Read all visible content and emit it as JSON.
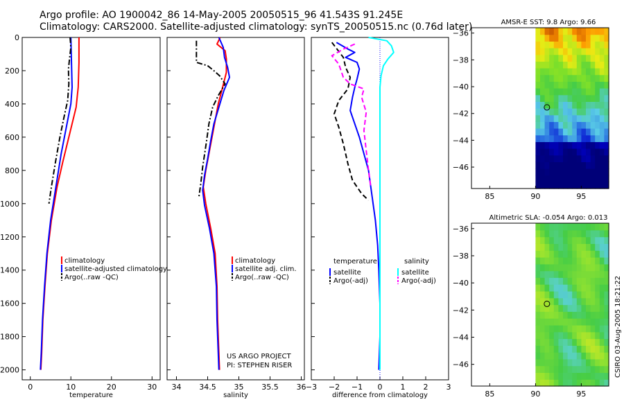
{
  "header": {
    "line1": "Argo profile: AO 1900042_86 14-May-2005 20050515_96 41.543S 91.245E",
    "line2": "Climatology: CARS2000. Satellite-adjusted climatology: synTS_20050515.nc (0.76d later)"
  },
  "colors": {
    "climatology": "#ff0000",
    "satellite": "#0000ff",
    "argo": "#000000",
    "salinity_satellite": "#00ffff",
    "salinity_argo": "#ff00ff"
  },
  "credits": {
    "project": "US ARGO PROJECT",
    "pi": "PI: STEPHEN RISER",
    "stamp": "CSIRO 03-Aug-2005 18:21:22"
  },
  "chart_data": [
    {
      "type": "line",
      "xlabel": "temperature",
      "ylabel": "",
      "xlim": [
        -2,
        32
      ],
      "ylim": [
        2060,
        0
      ],
      "xticks": [
        0,
        10,
        20,
        30
      ],
      "yticks": [
        0,
        200,
        400,
        600,
        800,
        1000,
        1200,
        1400,
        1600,
        1800,
        2000
      ],
      "legend": {
        "position": "middle-right",
        "entries": [
          "climatology",
          "satellite-adjusted climatology",
          "Argo(..raw -QC)"
        ]
      },
      "series": [
        {
          "name": "climatology",
          "color": "#ff0000",
          "style": "solid",
          "points": [
            [
              12,
              0
            ],
            [
              12,
              150
            ],
            [
              11.8,
              300
            ],
            [
              11.3,
              420
            ],
            [
              10,
              550
            ],
            [
              8,
              750
            ],
            [
              6.6,
              900
            ],
            [
              5.2,
              1100
            ],
            [
              4.2,
              1300
            ],
            [
              3.6,
              1500
            ],
            [
              3.1,
              1700
            ],
            [
              2.8,
              1900
            ],
            [
              2.6,
              2000
            ]
          ]
        },
        {
          "name": "satellite-adjusted climatology",
          "color": "#0000ff",
          "style": "solid",
          "points": [
            [
              10,
              0
            ],
            [
              10.1,
              100
            ],
            [
              10.3,
              300
            ],
            [
              10,
              400
            ],
            [
              8.8,
              550
            ],
            [
              7.6,
              700
            ],
            [
              6.3,
              900
            ],
            [
              5,
              1100
            ],
            [
              4.1,
              1300
            ],
            [
              3.5,
              1500
            ],
            [
              3,
              1700
            ],
            [
              2.7,
              1900
            ],
            [
              2.5,
              2000
            ]
          ]
        },
        {
          "name": "Argo(..raw -QC)",
          "color": "#000000",
          "style": "dashdot",
          "points": [
            [
              9.8,
              0
            ],
            [
              10,
              60
            ],
            [
              9.7,
              120
            ],
            [
              9.4,
              190
            ],
            [
              9.5,
              280
            ],
            [
              9.2,
              380
            ],
            [
              8.3,
              480
            ],
            [
              7.3,
              600
            ],
            [
              6.2,
              750
            ],
            [
              5.2,
              900
            ],
            [
              4.6,
              1000
            ]
          ]
        }
      ]
    },
    {
      "type": "line",
      "xlabel": "salinity",
      "ylabel": "",
      "xlim": [
        33.85,
        36.05
      ],
      "ylim": [
        2060,
        0
      ],
      "xticks": [
        34,
        34.5,
        35,
        35.5,
        36
      ],
      "yticks": [
        0,
        200,
        400,
        600,
        800,
        1000,
        1200,
        1400,
        1600,
        1800,
        2000
      ],
      "legend": {
        "position": "middle-right",
        "entries": [
          "climatology",
          "satellite adj. clim.",
          "Argo(..raw -QC)"
        ]
      },
      "series": [
        {
          "name": "climatology",
          "color": "#ff0000",
          "style": "solid",
          "points": [
            [
              34.7,
              0
            ],
            [
              34.65,
              40
            ],
            [
              34.78,
              80
            ],
            [
              34.8,
              130
            ],
            [
              34.8,
              210
            ],
            [
              34.74,
              300
            ],
            [
              34.67,
              400
            ],
            [
              34.62,
              500
            ],
            [
              34.57,
              600
            ],
            [
              34.52,
              700
            ],
            [
              34.47,
              800
            ],
            [
              34.43,
              900
            ],
            [
              34.47,
              1000
            ],
            [
              34.55,
              1150
            ],
            [
              34.62,
              1300
            ],
            [
              34.65,
              1500
            ],
            [
              34.66,
              1700
            ],
            [
              34.68,
              1900
            ],
            [
              34.69,
              2000
            ]
          ]
        },
        {
          "name": "satellite adj. clim.",
          "color": "#0000ff",
          "style": "solid",
          "points": [
            [
              34.68,
              0
            ],
            [
              34.75,
              60
            ],
            [
              34.77,
              120
            ],
            [
              34.82,
              180
            ],
            [
              34.85,
              240
            ],
            [
              34.76,
              320
            ],
            [
              34.68,
              420
            ],
            [
              34.6,
              520
            ],
            [
              34.55,
              620
            ],
            [
              34.5,
              730
            ],
            [
              34.45,
              830
            ],
            [
              34.42,
              920
            ],
            [
              34.45,
              1010
            ],
            [
              34.53,
              1150
            ],
            [
              34.6,
              1300
            ],
            [
              34.64,
              1500
            ],
            [
              34.65,
              1700
            ],
            [
              34.67,
              1900
            ],
            [
              34.68,
              2000
            ]
          ]
        },
        {
          "name": "Argo(..raw -QC)",
          "color": "#000000",
          "style": "dashdot",
          "points": [
            [
              34.32,
              20
            ],
            [
              34.32,
              100
            ],
            [
              34.32,
              150
            ],
            [
              34.5,
              170
            ],
            [
              34.6,
              200
            ],
            [
              34.69,
              230
            ],
            [
              34.78,
              280
            ],
            [
              34.67,
              350
            ],
            [
              34.58,
              420
            ],
            [
              34.52,
              520
            ],
            [
              34.48,
              630
            ],
            [
              34.42,
              780
            ],
            [
              34.39,
              880
            ],
            [
              34.36,
              960
            ]
          ]
        }
      ]
    },
    {
      "type": "line",
      "xlabel": "difference from climatology",
      "ylabel": "",
      "xlim": [
        -3,
        3
      ],
      "ylim": [
        2060,
        0
      ],
      "xticks": [
        -3,
        -2,
        -1,
        0,
        1,
        2,
        3
      ],
      "yticks": [
        0,
        200,
        400,
        600,
        800,
        1000,
        1200,
        1400,
        1600,
        1800,
        2000
      ],
      "legend": {
        "position": "middle",
        "temperature_heading": "temperature",
        "salinity_heading": "salinity",
        "entries": [
          "satellite",
          "Argo(-adj)",
          "satellite",
          "Argo(-adj)"
        ]
      },
      "series": [
        {
          "name": "temperature satellite",
          "color": "#0000ff",
          "style": "solid",
          "points": [
            [
              -1.9,
              30
            ],
            [
              -1.4,
              70
            ],
            [
              -1.1,
              90
            ],
            [
              -1.5,
              120
            ],
            [
              -1.0,
              150
            ],
            [
              -0.9,
              190
            ],
            [
              -1.0,
              250
            ],
            [
              -1.1,
              300
            ],
            [
              -1.2,
              360
            ],
            [
              -1.3,
              440
            ],
            [
              -1.1,
              520
            ],
            [
              -0.9,
              600
            ],
            [
              -0.7,
              700
            ],
            [
              -0.5,
              800
            ],
            [
              -0.4,
              900
            ],
            [
              -0.3,
              1000
            ],
            [
              -0.2,
              1100
            ],
            [
              -0.1,
              1250
            ],
            [
              -0.05,
              1400
            ],
            [
              0,
              1600
            ],
            [
              0,
              1800
            ],
            [
              -0.05,
              2000
            ]
          ]
        },
        {
          "name": "temperature Argo(-adj)",
          "color": "#000000",
          "style": "dashed",
          "points": [
            [
              -2.1,
              30
            ],
            [
              -1.6,
              120
            ],
            [
              -1.5,
              180
            ],
            [
              -1.3,
              240
            ],
            [
              -1.4,
              310
            ],
            [
              -1.8,
              380
            ],
            [
              -2.0,
              460
            ],
            [
              -1.8,
              540
            ],
            [
              -1.6,
              640
            ],
            [
              -1.4,
              760
            ],
            [
              -1.2,
              860
            ],
            [
              -0.8,
              940
            ],
            [
              -0.5,
              980
            ]
          ]
        },
        {
          "name": "salinity satellite",
          "color": "#00ffff",
          "style": "solid",
          "points": [
            [
              -0.5,
              0
            ],
            [
              0.3,
              20
            ],
            [
              0.5,
              50
            ],
            [
              0.6,
              90
            ],
            [
              0.35,
              130
            ],
            [
              0.15,
              170
            ],
            [
              0.05,
              230
            ],
            [
              0,
              300
            ],
            [
              0,
              500
            ],
            [
              0,
              800
            ],
            [
              0,
              1100
            ],
            [
              0,
              1400
            ],
            [
              0,
              1700
            ],
            [
              0,
              2000
            ]
          ]
        },
        {
          "name": "salinity Argo(-adj)",
          "color": "#ff00ff",
          "style": "dashed",
          "points": [
            [
              -1.1,
              40
            ],
            [
              -1.6,
              70
            ],
            [
              -2.1,
              110
            ],
            [
              -1.8,
              160
            ],
            [
              -1.6,
              240
            ],
            [
              -1.3,
              280
            ],
            [
              -0.7,
              310
            ],
            [
              -0.8,
              360
            ],
            [
              -0.6,
              450
            ],
            [
              -0.7,
              560
            ],
            [
              -0.6,
              680
            ],
            [
              -0.5,
              800
            ],
            [
              -0.4,
              900
            ]
          ]
        }
      ]
    },
    {
      "type": "heatmap",
      "title": "AMSR-E SST: 9.8 Argo: 9.66",
      "xlabel": "",
      "ylabel": "",
      "xlim": [
        83,
        98
      ],
      "ylim": [
        -47.6,
        -35.6
      ],
      "xticks": [
        85,
        90,
        95
      ],
      "yticks": [
        -36,
        -38,
        -40,
        -42,
        -44,
        -46
      ],
      "marker": {
        "lon": 91.245,
        "lat": -41.543
      }
    },
    {
      "type": "heatmap",
      "title": "Altimetric SLA: -0.054 Argo: 0.013",
      "xlabel": "",
      "ylabel": "",
      "xlim": [
        83,
        98
      ],
      "ylim": [
        -47.6,
        -35.6
      ],
      "xticks": [
        85,
        90,
        95
      ],
      "yticks": [
        -36,
        -38,
        -40,
        -42,
        -44,
        -46
      ],
      "marker": {
        "lon": 91.245,
        "lat": -41.543
      }
    }
  ]
}
